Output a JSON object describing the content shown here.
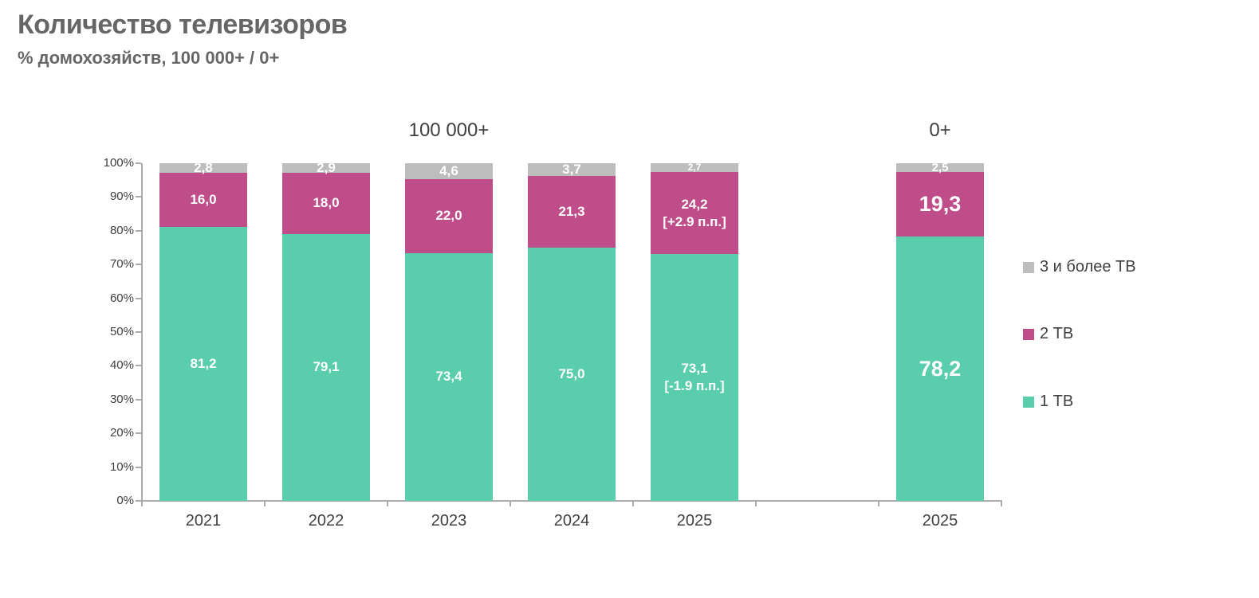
{
  "title": "Количество телевизоров",
  "subtitle": "% домохозяйств, 100 000+ / 0+",
  "colors": {
    "tv1": "#59CDAC",
    "tv2": "#BF4D8A",
    "tv3plus": "#BDBDBD",
    "axis": "#ABABAB",
    "text_dark": "#404040",
    "title_gray": "#666666",
    "value_label": "#FFFFFF"
  },
  "chart_data": {
    "type": "bar",
    "stacked": true,
    "unit": "% of households",
    "ylim": [
      0,
      100
    ],
    "grid": false,
    "legend_position": "right",
    "y_ticks": [
      "0%",
      "10%",
      "20%",
      "30%",
      "40%",
      "50%",
      "60%",
      "70%",
      "80%",
      "90%",
      "100%"
    ],
    "groups": [
      {
        "title": "100 000+",
        "slot_start": 0,
        "slot_end": 4
      },
      {
        "title": "0+",
        "slot_start": 6,
        "slot_end": 6
      }
    ],
    "n_slots": 7,
    "categories": [
      "2021",
      "2022",
      "2023",
      "2024",
      "2025",
      "2025"
    ],
    "category_slots": [
      0,
      1,
      2,
      3,
      4,
      6
    ],
    "series": [
      {
        "name": "1 ТВ",
        "color": "#59CDAC",
        "values": [
          81.2,
          79.1,
          73.4,
          75.0,
          73.1,
          78.2
        ],
        "labels": [
          "81,2",
          "79,1",
          "73,4",
          "75,0",
          "73,1\n[-1.9 п.п.]",
          "78,2"
        ]
      },
      {
        "name": "2 ТВ",
        "color": "#BF4D8A",
        "values": [
          16.0,
          18.0,
          22.0,
          21.3,
          24.2,
          19.3
        ],
        "labels": [
          "16,0",
          "18,0",
          "22,0",
          "21,3",
          "24,2\n[+2.9 п.п.]",
          "19,3"
        ]
      },
      {
        "name": "3 и более ТВ",
        "color": "#BDBDBD",
        "values": [
          2.8,
          2.9,
          4.6,
          3.7,
          2.7,
          2.5
        ],
        "labels": [
          "2,8",
          "2,9",
          "4,6",
          "3,7",
          "2,7",
          "2,5"
        ]
      }
    ],
    "legend_order_top_to_bottom": [
      "3 и более ТВ",
      "2 ТВ",
      "1 ТВ"
    ]
  }
}
